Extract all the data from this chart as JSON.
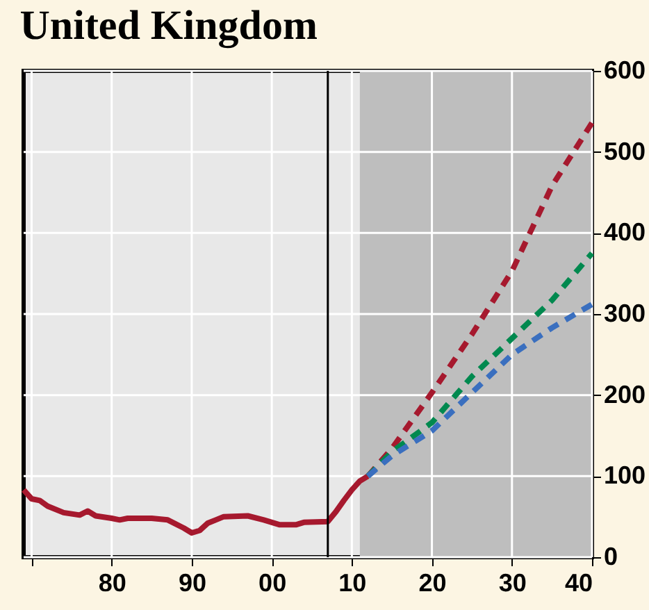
{
  "chart_data": {
    "type": "line",
    "title": "United Kingdom",
    "xlim": [
      1969,
      2040
    ],
    "ylim": [
      0,
      600
    ],
    "xticks": [
      {
        "value": 1970,
        "label": null
      },
      {
        "value": 1980,
        "label": "80"
      },
      {
        "value": 1990,
        "label": "90"
      },
      {
        "value": 2000,
        "label": "00"
      },
      {
        "value": 2010,
        "label": "10"
      },
      {
        "value": 2020,
        "label": "20"
      },
      {
        "value": 2030,
        "label": "30"
      },
      {
        "value": 2040,
        "label": "40"
      }
    ],
    "yticks": [
      0,
      100,
      200,
      300,
      400,
      500,
      600
    ],
    "grid": true,
    "bands": [
      {
        "axis": "x",
        "from": 2011,
        "to": 2040,
        "color": "#bebebe"
      }
    ],
    "ref_lines": [
      {
        "axis": "x",
        "value": 2007,
        "color": "#000000"
      }
    ],
    "series": [
      {
        "color": "#a6192e",
        "line_style": "solid",
        "x": [
          1969,
          1970,
          1971,
          1972,
          1974,
          1976,
          1977,
          1978,
          1980,
          1981,
          1982,
          1985,
          1987,
          1989,
          1990,
          1991,
          1992,
          1993,
          1994,
          1997,
          1999,
          2001,
          2003,
          2004,
          2007,
          2008,
          2009,
          2010,
          2011,
          2012
        ],
        "values": [
          83,
          72,
          70,
          63,
          55,
          52,
          57,
          51,
          48,
          46,
          48,
          48,
          46,
          36,
          30,
          33,
          42,
          46,
          50,
          51,
          46,
          40,
          40,
          43,
          44,
          56,
          70,
          83,
          94,
          100
        ]
      },
      {
        "color": "#a6192e",
        "line_style": "dashed",
        "x": [
          2012,
          2015,
          2020,
          2025,
          2030,
          2035,
          2040
        ],
        "values": [
          100,
          134,
          203,
          275,
          353,
          458,
          536
        ]
      },
      {
        "color": "#00894f",
        "line_style": "dashed",
        "x": [
          2012,
          2015,
          2020,
          2025,
          2030,
          2035,
          2040
        ],
        "values": [
          100,
          130,
          166,
          223,
          270,
          317,
          375
        ]
      },
      {
        "color": "#3a6fbf",
        "line_style": "dashed",
        "x": [
          2012,
          2015,
          2020,
          2025,
          2030,
          2035,
          2040
        ],
        "values": [
          100,
          125,
          156,
          203,
          250,
          283,
          312
        ]
      }
    ]
  }
}
